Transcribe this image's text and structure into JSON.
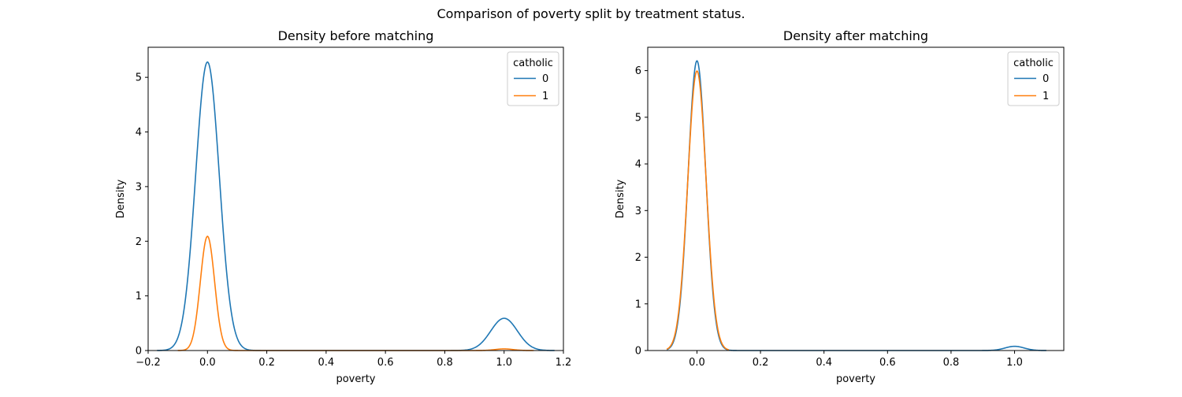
{
  "figure": {
    "suptitle": "Comparison of poverty split by treatment status."
  },
  "chart_data": [
    {
      "type": "line",
      "title": "Density before matching",
      "xlabel": "poverty",
      "ylabel": "Density",
      "xlim": [
        -0.2,
        1.2
      ],
      "ylim": [
        0,
        5.55
      ],
      "xticks": [
        -0.2,
        0.0,
        0.2,
        0.4,
        0.6,
        0.8,
        1.0,
        1.2
      ],
      "xtick_labels": [
        "−0.2",
        "0.0",
        "0.2",
        "0.4",
        "0.6",
        "0.8",
        "1.0",
        "1.2"
      ],
      "yticks": [
        0,
        1,
        2,
        3,
        4,
        5
      ],
      "ytick_labels": [
        "0",
        "1",
        "2",
        "3",
        "4",
        "5"
      ],
      "grid": false,
      "legend": {
        "title": "catholic",
        "placement": "top-right"
      },
      "series": [
        {
          "name": "0",
          "color": "#1f77b4",
          "x_range": [
            -0.17,
            1.17
          ],
          "components": [
            {
              "mu": 0.0,
              "sigma": 0.04,
              "peak": 5.28
            },
            {
              "mu": 1.0,
              "sigma": 0.045,
              "peak": 0.59
            }
          ]
        },
        {
          "name": "1",
          "color": "#ff7f0e",
          "x_range": [
            -0.1,
            1.1
          ],
          "components": [
            {
              "mu": 0.0,
              "sigma": 0.024,
              "peak": 2.09
            },
            {
              "mu": 1.0,
              "sigma": 0.03,
              "peak": 0.03
            }
          ]
        }
      ]
    },
    {
      "type": "line",
      "title": "Density after matching",
      "xlabel": "poverty",
      "ylabel": "Density",
      "xlim": [
        -0.155,
        1.155
      ],
      "ylim": [
        0,
        6.5
      ],
      "xticks": [
        0.0,
        0.2,
        0.4,
        0.6,
        0.8,
        1.0
      ],
      "xtick_labels": [
        "0.0",
        "0.2",
        "0.4",
        "0.6",
        "0.8",
        "1.0"
      ],
      "yticks": [
        0,
        1,
        2,
        3,
        4,
        5,
        6
      ],
      "ytick_labels": [
        "0",
        "1",
        "2",
        "3",
        "4",
        "5",
        "6"
      ],
      "grid": false,
      "legend": {
        "title": "catholic",
        "placement": "top-right"
      },
      "series": [
        {
          "name": "0",
          "color": "#1f77b4",
          "x_range": [
            -0.095,
            1.1
          ],
          "components": [
            {
              "mu": 0.0,
              "sigma": 0.028,
              "peak": 6.21
            },
            {
              "mu": 1.0,
              "sigma": 0.03,
              "peak": 0.09
            }
          ]
        },
        {
          "name": "1",
          "color": "#ff7f0e",
          "x_range": [
            -0.095,
            0.1
          ],
          "components": [
            {
              "mu": 0.0,
              "sigma": 0.029,
              "peak": 5.99
            }
          ]
        }
      ]
    }
  ]
}
